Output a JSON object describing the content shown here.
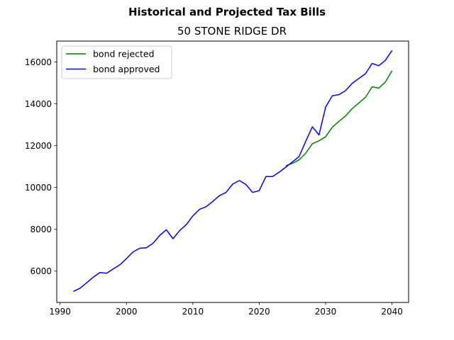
{
  "chart_data": {
    "type": "line",
    "suptitle": "Historical and Projected Tax Bills",
    "title": "50 STONE RIDGE DR",
    "xlabel": "",
    "ylabel": "",
    "xlim": [
      1989.5,
      2042.5
    ],
    "ylim": [
      4500,
      17000
    ],
    "xticks": [
      1990,
      2000,
      2010,
      2020,
      2030,
      2040
    ],
    "yticks": [
      6000,
      8000,
      10000,
      12000,
      14000,
      16000
    ],
    "legend_position": "upper-left",
    "grid": false,
    "series": [
      {
        "name": "bond rejected",
        "color": "#008000",
        "x": [
          2024,
          2025,
          2026,
          2027,
          2028,
          2029,
          2030,
          2031,
          2032,
          2033,
          2034,
          2035,
          2036,
          2037,
          2038,
          2039,
          2040
        ],
        "y": [
          11040,
          11150,
          11320,
          11630,
          12090,
          12230,
          12420,
          12880,
          13160,
          13420,
          13770,
          14040,
          14310,
          14810,
          14750,
          15040,
          15580
        ]
      },
      {
        "name": "bond approved",
        "color": "#0000ff",
        "x": [
          1992,
          1993,
          1994,
          1995,
          1996,
          1997,
          1998,
          1999,
          2000,
          2001,
          2002,
          2003,
          2004,
          2005,
          2006,
          2007,
          2008,
          2009,
          2010,
          2011,
          2012,
          2013,
          2014,
          2015,
          2016,
          2017,
          2018,
          2019,
          2020,
          2021,
          2022,
          2023,
          2024,
          2025,
          2026,
          2027,
          2028,
          2029,
          2030,
          2031,
          2032,
          2033,
          2034,
          2035,
          2036,
          2037,
          2038,
          2039,
          2040
        ],
        "y": [
          5030,
          5180,
          5440,
          5710,
          5930,
          5900,
          6100,
          6300,
          6600,
          6920,
          7090,
          7120,
          7330,
          7700,
          7980,
          7550,
          7930,
          8220,
          8640,
          8950,
          9080,
          9330,
          9610,
          9760,
          10160,
          10330,
          10140,
          9760,
          9850,
          10520,
          10520,
          10730,
          10970,
          11220,
          11480,
          12200,
          12900,
          12510,
          13840,
          14380,
          14440,
          14630,
          14980,
          15210,
          15440,
          15930,
          15820,
          16080,
          16550
        ]
      }
    ]
  }
}
